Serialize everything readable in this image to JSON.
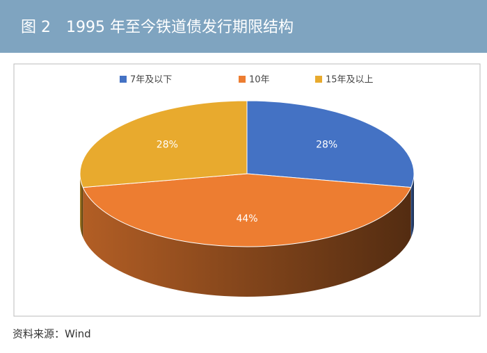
{
  "title": "图 2　1995 年至今铁道债发行期限结构",
  "source": "资料来源：Wind",
  "chart_data": {
    "type": "pie",
    "categories": [
      "7年及以下",
      "10年",
      "15年及以上"
    ],
    "values": [
      28,
      44,
      28
    ],
    "value_labels": [
      "28%",
      "44%",
      "28%"
    ],
    "colors": [
      "#4472c4",
      "#ed7d31",
      "#e8aa2e"
    ],
    "legend": "top"
  }
}
